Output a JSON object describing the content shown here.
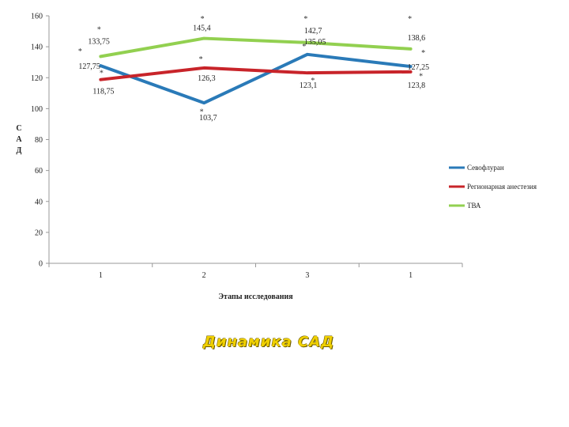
{
  "caption": "Динамика САД",
  "chart_data": {
    "type": "line",
    "xlabel": "Этапы исследования",
    "ylabel_letters": [
      "С",
      "А",
      "Д"
    ],
    "categories": [
      "1",
      "2",
      "3",
      "1"
    ],
    "ylim": [
      0,
      160
    ],
    "yticks": [
      0,
      20,
      40,
      60,
      80,
      100,
      120,
      140,
      160
    ],
    "grid": false,
    "legend_position": "right",
    "series": [
      {
        "name": "Севофлуран",
        "color": "#2a7ab8",
        "values": [
          127.75,
          103.7,
          135.05,
          127.25
        ],
        "labels": [
          "127,75",
          "103,7",
          "135,05",
          "127,25"
        ]
      },
      {
        "name": "Регионарная анестезия",
        "color": "#c8242a",
        "values": [
          118.75,
          126.3,
          123.1,
          123.8
        ],
        "labels": [
          "118,75",
          "126,3",
          "123,1",
          "123,8"
        ]
      },
      {
        "name": "ТВА",
        "color": "#92d050",
        "values": [
          133.75,
          145.4,
          142.7,
          138.6
        ],
        "labels": [
          "133,75",
          "145,4",
          "142,7",
          "138,6"
        ]
      }
    ],
    "significance_marks": [
      {
        "category_index": 0,
        "y": 151,
        "text": "*"
      },
      {
        "category_index": 0,
        "y": 137,
        "text": "*"
      },
      {
        "category_index": 0,
        "y": 123,
        "text": "*"
      },
      {
        "category_index": 1,
        "y": 158,
        "text": "*"
      },
      {
        "category_index": 1,
        "y": 132,
        "text": "*"
      },
      {
        "category_index": 1,
        "y": 98,
        "text": "*"
      },
      {
        "category_index": 2,
        "y": 158,
        "text": "*"
      },
      {
        "category_index": 2,
        "y": 140,
        "text": "*"
      },
      {
        "category_index": 2,
        "y": 118,
        "text": "*"
      },
      {
        "category_index": 3,
        "y": 158,
        "text": "*"
      },
      {
        "category_index": 3,
        "y": 136,
        "text": "*"
      },
      {
        "category_index": 3,
        "y": 121,
        "text": "*"
      }
    ]
  }
}
